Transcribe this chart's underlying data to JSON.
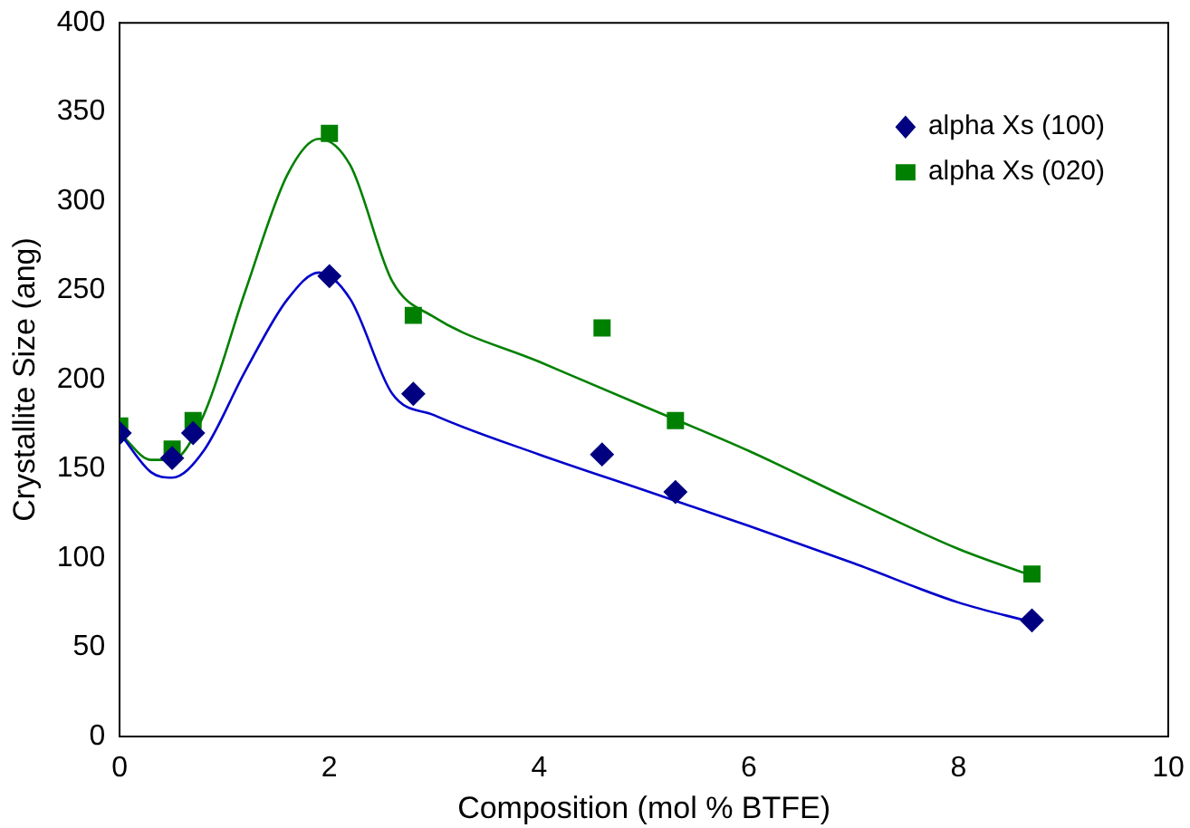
{
  "chart_data": {
    "type": "scatter",
    "xlabel": "Composition (mol % BTFE)",
    "ylabel": "Crystallite Size (ang)",
    "xlim": [
      0,
      10
    ],
    "xticks": [
      0,
      2,
      4,
      6,
      8,
      10
    ],
    "ylim": [
      0,
      400
    ],
    "yticks": [
      0,
      50,
      100,
      150,
      200,
      250,
      300,
      350,
      400
    ],
    "grid": false,
    "legend": "top right",
    "series": [
      {
        "name": "alpha Xs (100)",
        "color": "#000080",
        "marker": "diamond",
        "x": [
          0,
          0.5,
          0.7,
          2,
          2.8,
          4.6,
          5.3,
          8.7
        ],
        "values": [
          170,
          156,
          170,
          258,
          192,
          158,
          137,
          65
        ]
      },
      {
        "name": "alpha Xs (020)",
        "color": "#008000",
        "marker": "square",
        "x": [
          0,
          0.5,
          0.7,
          2,
          2.8,
          4.6,
          5.3,
          8.7
        ],
        "values": [
          174,
          161,
          177,
          338,
          236,
          229,
          177,
          91
        ]
      },
      {
        "type": "line",
        "color": "#0000cc",
        "marker": "none",
        "x": [
          0,
          0.3,
          0.5,
          0.8,
          1.2,
          1.6,
          1.9,
          2.2,
          2.6,
          3,
          4,
          5,
          6,
          7,
          8,
          8.7
        ],
        "values": [
          170,
          148,
          145,
          160,
          205,
          245,
          260,
          245,
          192,
          180,
          158,
          138,
          118,
          97,
          75,
          64
        ]
      },
      {
        "type": "line",
        "color": "#008000",
        "marker": "none",
        "x": [
          0,
          0.3,
          0.5,
          0.8,
          1.2,
          1.6,
          1.9,
          2.2,
          2.6,
          3,
          4,
          5,
          6,
          7,
          8,
          8.7
        ],
        "values": [
          170,
          155,
          155,
          180,
          250,
          315,
          335,
          320,
          255,
          235,
          210,
          185,
          160,
          132,
          105,
          90
        ]
      }
    ]
  }
}
